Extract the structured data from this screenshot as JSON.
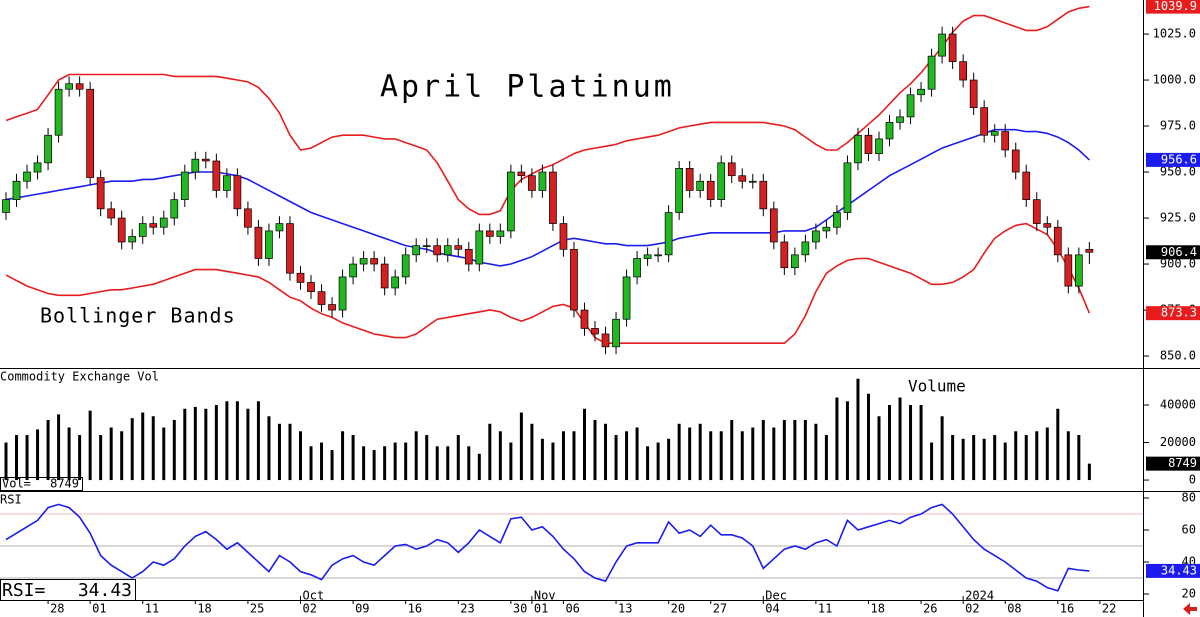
{
  "chart_data": [
    {
      "type": "candlestick",
      "title": "April Platinum",
      "annotation": "Bollinger Bands",
      "xlim": [
        -0.57,
        108.1
      ],
      "ylim": [
        843.5,
        1043.5
      ],
      "yticks": [
        {
          "value": 850,
          "label": "850.0"
        },
        {
          "value": 875,
          "label": "875.0"
        },
        {
          "value": 900,
          "label": "900.0"
        },
        {
          "value": 925,
          "label": "925.0"
        },
        {
          "value": 950,
          "label": "950.0"
        },
        {
          "value": 975,
          "label": "975.0"
        },
        {
          "value": 1000,
          "label": "1000.0"
        },
        {
          "value": 1025,
          "label": "1025.0"
        }
      ],
      "up_color": "#22b822",
      "down_color": "#d42020",
      "last_color": "#000000",
      "open": [
        928,
        935,
        945,
        950,
        955,
        970,
        995,
        998,
        995,
        947,
        930,
        925,
        912,
        915,
        922,
        920,
        925,
        935,
        950,
        957,
        956,
        940,
        948,
        930,
        920,
        903,
        918,
        922,
        895,
        890,
        885,
        878,
        875,
        893,
        900,
        903,
        900,
        887,
        893,
        905,
        910,
        910,
        905,
        910,
        908,
        900,
        918,
        915,
        918,
        950,
        948,
        940,
        950,
        922,
        908,
        875,
        865,
        862,
        855,
        870,
        893,
        903,
        905,
        905,
        928,
        952,
        940,
        945,
        935,
        955,
        948,
        945,
        945,
        930,
        912,
        898,
        905,
        912,
        918,
        920,
        928,
        955,
        970,
        960,
        968,
        977,
        980,
        992,
        995,
        1013,
        1025,
        1010,
        1000,
        985,
        970,
        972,
        962,
        950,
        935,
        922,
        920,
        905,
        888,
        908
      ],
      "high": [
        939,
        949,
        954,
        959,
        974,
        999,
        1002,
        1002,
        999,
        951,
        934,
        929,
        919,
        926,
        926,
        929,
        939,
        954,
        961,
        961,
        960,
        952,
        952,
        934,
        924,
        922,
        926,
        926,
        899,
        894,
        889,
        882,
        897,
        904,
        907,
        907,
        904,
        897,
        909,
        914,
        914,
        914,
        914,
        914,
        912,
        922,
        922,
        922,
        954,
        954,
        952,
        954,
        954,
        926,
        912,
        879,
        869,
        866,
        874,
        897,
        907,
        909,
        909,
        932,
        956,
        956,
        949,
        949,
        959,
        959,
        952,
        949,
        949,
        934,
        916,
        909,
        916,
        922,
        924,
        932,
        959,
        974,
        974,
        972,
        981,
        984,
        996,
        999,
        1017,
        1029,
        1029,
        1014,
        1004,
        989,
        976,
        976,
        966,
        954,
        939,
        926,
        924,
        909,
        909,
        912
      ],
      "low": [
        924,
        931,
        941,
        946,
        951,
        966,
        991,
        991,
        943,
        926,
        921,
        908,
        908,
        911,
        916,
        916,
        921,
        931,
        946,
        952,
        936,
        936,
        926,
        916,
        899,
        899,
        914,
        891,
        886,
        881,
        874,
        871,
        871,
        889,
        896,
        896,
        883,
        883,
        889,
        901,
        906,
        901,
        901,
        904,
        896,
        896,
        911,
        911,
        914,
        944,
        936,
        936,
        918,
        904,
        871,
        861,
        858,
        851,
        851,
        866,
        889,
        899,
        901,
        901,
        924,
        936,
        936,
        931,
        931,
        944,
        941,
        941,
        926,
        908,
        894,
        894,
        901,
        908,
        914,
        916,
        924,
        951,
        956,
        956,
        964,
        973,
        976,
        988,
        991,
        1009,
        1006,
        996,
        981,
        966,
        966,
        958,
        946,
        931,
        918,
        916,
        901,
        884,
        884,
        900
      ],
      "close": [
        935,
        945,
        950,
        955,
        970,
        995,
        998,
        995,
        947,
        930,
        925,
        912,
        915,
        922,
        920,
        925,
        935,
        950,
        957,
        956,
        940,
        948,
        930,
        920,
        903,
        918,
        922,
        895,
        890,
        885,
        878,
        875,
        893,
        900,
        903,
        900,
        887,
        893,
        905,
        910,
        910,
        905,
        910,
        908,
        900,
        918,
        915,
        918,
        950,
        948,
        940,
        950,
        922,
        908,
        875,
        865,
        862,
        855,
        870,
        893,
        903,
        905,
        905,
        928,
        952,
        940,
        945,
        935,
        955,
        948,
        945,
        945,
        930,
        912,
        898,
        905,
        912,
        918,
        920,
        928,
        955,
        970,
        960,
        968,
        977,
        980,
        992,
        995,
        1013,
        1025,
        1010,
        1000,
        985,
        970,
        972,
        962,
        950,
        935,
        922,
        920,
        905,
        888,
        905,
        906.4
      ],
      "bands": {
        "upper": {
          "color": "#e81c1c",
          "values": [
            978,
            980,
            982,
            984,
            992,
            1000,
            1003,
            1003,
            1003,
            1003,
            1003,
            1003,
            1003,
            1003,
            1003,
            1003,
            1002,
            1002,
            1002,
            1002,
            1002,
            1001,
            1000,
            999,
            996,
            990,
            982,
            970,
            962,
            963,
            966,
            969,
            970,
            970,
            970,
            969,
            968,
            968,
            966,
            964,
            962,
            955,
            945,
            935,
            930,
            927,
            927,
            929,
            940,
            946,
            949,
            952,
            954,
            957,
            960,
            962,
            963,
            964,
            965,
            967,
            968,
            969,
            970,
            972,
            974,
            975,
            976,
            977,
            977,
            977,
            977,
            977,
            977,
            976,
            975,
            973,
            969,
            965,
            962,
            962,
            966,
            971,
            976,
            981,
            987,
            993,
            998,
            1004,
            1011,
            1018,
            1026,
            1032,
            1035,
            1035,
            1033,
            1031,
            1029,
            1027,
            1027,
            1029,
            1033,
            1037,
            1039,
            1039.9
          ]
        },
        "middle": {
          "color": "#1c1cf0",
          "values": [
            935,
            936,
            937,
            938,
            939,
            940,
            941,
            942,
            943,
            944,
            945,
            945,
            945,
            946,
            946,
            947,
            948,
            949,
            950,
            950,
            950,
            949,
            948,
            946,
            943,
            940,
            937,
            934,
            931,
            928,
            926,
            924,
            922,
            920,
            918,
            916,
            914,
            912,
            910,
            909,
            908,
            906,
            905,
            904,
            903,
            901,
            900,
            899,
            900,
            902,
            904,
            907,
            910,
            913,
            914,
            913,
            912,
            911,
            911,
            910,
            910,
            910,
            911,
            912,
            914,
            915,
            916,
            917,
            917,
            917,
            917,
            917,
            917,
            917,
            918,
            918,
            918,
            920,
            924,
            928,
            932,
            936,
            940,
            944,
            948,
            951,
            954,
            957,
            960,
            963,
            965,
            967,
            969,
            971,
            973,
            973,
            973,
            972,
            972,
            971,
            969,
            966,
            962,
            956.6
          ]
        },
        "lower": {
          "color": "#e81c1c",
          "values": [
            894,
            891,
            888,
            886,
            884,
            883,
            883,
            883,
            884,
            885,
            886,
            886,
            887,
            888,
            889,
            891,
            893,
            895,
            897,
            897,
            897,
            896,
            895,
            894,
            893,
            890,
            886,
            882,
            880,
            876,
            873,
            871,
            868,
            866,
            864,
            862,
            861,
            860,
            860,
            862,
            866,
            870,
            871,
            872,
            873,
            874,
            875,
            874,
            871,
            869,
            871,
            874,
            877,
            878,
            876,
            868,
            860,
            857,
            857,
            857,
            857,
            857,
            857,
            857,
            857,
            857,
            857,
            857,
            857,
            857,
            857,
            857,
            857,
            857,
            857,
            862,
            872,
            885,
            895,
            899,
            902,
            903,
            903,
            901,
            899,
            897,
            895,
            892,
            889,
            889,
            890,
            893,
            897,
            906,
            914,
            918,
            921,
            922,
            919,
            916,
            908,
            898,
            887,
            873.3
          ]
        }
      }
    },
    {
      "type": "bar",
      "title": "Commodity Exchange Vol",
      "annotation": "Volume",
      "readout_label": "Vol=",
      "color": "#000000",
      "last_color": "#000000",
      "xlim": [
        -0.57,
        108.1
      ],
      "ylim": [
        -5300,
        59200
      ],
      "yticks": [
        0,
        20000,
        40000
      ],
      "values": [
        20000,
        24000,
        24000,
        27000,
        32000,
        35000,
        28000,
        24000,
        37000,
        24000,
        28000,
        26000,
        33000,
        36000,
        34000,
        28000,
        32000,
        38000,
        39000,
        38000,
        40000,
        42000,
        42000,
        38000,
        42000,
        34000,
        30000,
        30000,
        26000,
        18000,
        20000,
        16000,
        26000,
        24000,
        18000,
        16000,
        18000,
        20000,
        20000,
        26000,
        24000,
        18000,
        18000,
        24000,
        18000,
        14000,
        30000,
        26000,
        20000,
        36000,
        30000,
        22000,
        20000,
        26000,
        26000,
        38000,
        32000,
        30000,
        24000,
        26000,
        28000,
        18000,
        20000,
        22000,
        30000,
        28000,
        30000,
        26000,
        26000,
        32000,
        26000,
        28000,
        32000,
        28000,
        32000,
        32000,
        32000,
        30000,
        24000,
        44000,
        42000,
        54000,
        46000,
        34000,
        40000,
        44000,
        40000,
        40000,
        20000,
        34000,
        24000,
        22000,
        24000,
        22000,
        24000,
        20000,
        26000,
        24000,
        26000,
        28000,
        38000,
        26000,
        24000,
        8749
      ]
    },
    {
      "type": "line",
      "title": "RSI",
      "readout_label": "RSI=",
      "color": "#1c1cf0",
      "ref_color": "#e8a0a0",
      "ref_lines": [
        70,
        50,
        30
      ],
      "xlim": [
        -0.57,
        108.1
      ],
      "ylim": [
        16.25,
        83.75
      ],
      "yticks": [
        20,
        40,
        60,
        80
      ],
      "values": [
        54,
        58,
        62,
        66,
        74,
        76,
        74,
        68,
        58,
        44,
        38,
        34,
        30,
        34,
        40,
        38,
        42,
        50,
        56,
        59,
        54,
        48,
        52,
        46,
        40,
        34,
        44,
        40,
        34,
        32,
        29,
        38,
        42,
        44,
        40,
        38,
        44,
        50,
        51,
        48,
        50,
        54,
        52,
        46,
        52,
        60,
        56,
        52,
        67,
        68,
        60,
        62,
        56,
        48,
        42,
        34,
        30,
        28,
        40,
        50,
        52,
        52,
        52,
        65,
        58,
        60,
        56,
        63,
        57,
        57,
        55,
        50,
        36,
        42,
        48,
        50,
        48,
        52,
        54,
        50,
        66,
        60,
        62,
        64,
        66,
        64,
        68,
        70,
        74,
        76,
        70,
        62,
        54,
        48,
        44,
        40,
        35,
        30,
        28,
        24,
        22,
        36,
        35,
        34.43
      ],
      "xticks": [
        {
          "value": 4,
          "label": "28"
        },
        {
          "value": 8,
          "label": "01"
        },
        {
          "value": 13,
          "label": "11"
        },
        {
          "value": 18,
          "label": "18"
        },
        {
          "value": 23,
          "label": "25"
        },
        {
          "value": 28,
          "label": "02"
        },
        {
          "value": 33,
          "label": "09"
        },
        {
          "value": 38,
          "label": "16"
        },
        {
          "value": 43,
          "label": "23"
        },
        {
          "value": 48,
          "label": "30"
        },
        {
          "value": 50,
          "label": "01"
        },
        {
          "value": 53,
          "label": "06"
        },
        {
          "value": 58,
          "label": "13"
        },
        {
          "value": 63,
          "label": "20"
        },
        {
          "value": 67,
          "label": "27"
        },
        {
          "value": 72,
          "label": "04"
        },
        {
          "value": 77,
          "label": "11"
        },
        {
          "value": 82,
          "label": "18"
        },
        {
          "value": 87,
          "label": "26"
        },
        {
          "value": 91,
          "label": "02"
        },
        {
          "value": 95,
          "label": "08"
        },
        {
          "value": 100,
          "label": "16"
        },
        {
          "value": 104,
          "label": "22"
        }
      ],
      "month_ticks": [
        {
          "value": 28,
          "label": "Oct"
        },
        {
          "value": 50,
          "label": "Nov"
        },
        {
          "value": 72,
          "label": "Dec"
        },
        {
          "value": 91,
          "label": "2024"
        }
      ]
    }
  ]
}
